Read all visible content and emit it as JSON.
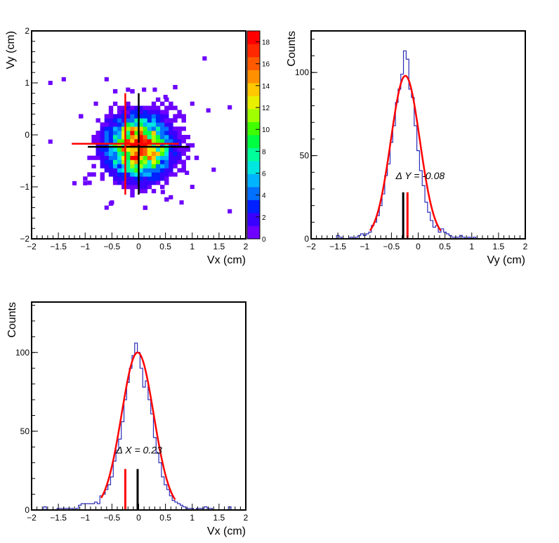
{
  "chart_data": [
    {
      "type": "heatmap",
      "title": "",
      "xlabel": "Vx (cm)",
      "ylabel": "Vy (cm)",
      "xlim": [
        -2,
        2
      ],
      "ylim": [
        -2,
        2
      ],
      "xticks": [
        "−2",
        "−1.5",
        "−1",
        "−0.5",
        "0",
        "0.5",
        "1",
        "1.5",
        "2"
      ],
      "yticks": [
        "−2",
        "−1",
        "0",
        "1",
        "2"
      ],
      "colorbar": {
        "min": 0,
        "max": 19,
        "ticks": [
          "0",
          "2",
          "4",
          "6",
          "8",
          "10",
          "12",
          "14",
          "16",
          "18"
        ],
        "colors": [
          "#6d00ff",
          "#3a00ff",
          "#0020ff",
          "#0070ff",
          "#00b4ff",
          "#00e8e0",
          "#00ff9a",
          "#00ff40",
          "#40ff00",
          "#a0ff00",
          "#e8f000",
          "#ffc800",
          "#ff9000",
          "#ff5a00",
          "#ff2800",
          "#ff0000"
        ]
      },
      "gauss_center": [
        0.0,
        -0.23
      ],
      "gauss_sigma": [
        0.33,
        0.33
      ],
      "peak_count": 19,
      "outliers": [
        [
          -1.65,
          1.0
        ],
        [
          -1.4,
          1.07
        ],
        [
          -0.6,
          1.07
        ],
        [
          1.23,
          1.47
        ],
        [
          -1.65,
          -0.13
        ],
        [
          1.7,
          0.53
        ],
        [
          1.7,
          -1.47
        ],
        [
          -1.2,
          -0.93
        ],
        [
          -1.0,
          -0.93
        ],
        [
          -0.6,
          -1.4
        ],
        [
          0.6,
          -1.2
        ],
        [
          0.8,
          -1.3
        ],
        [
          1.0,
          0.6
        ],
        [
          1.3,
          0.47
        ],
        [
          1.0,
          -1.0
        ],
        [
          0.3,
          0.87
        ],
        [
          0.5,
          0.73
        ],
        [
          0.1,
          0.87
        ],
        [
          -0.5,
          -1.3
        ],
        [
          0.45,
          -1.1
        ],
        [
          -0.2,
          0.87
        ],
        [
          0.6,
          0.27
        ],
        [
          0.9,
          -0.73
        ],
        [
          -0.8,
          0.6
        ],
        [
          1.4,
          -0.67
        ]
      ],
      "crosshair_black": {
        "x": 0.0,
        "y": -0.23,
        "x_extent": [
          -0.95,
          0.95
        ],
        "y_extent": [
          -1.15,
          0.8
        ]
      },
      "crosshair_red": {
        "x": -0.25,
        "y": -0.17,
        "x_extent": [
          -1.25,
          0.75
        ],
        "y_extent": [
          -1.15,
          0.8
        ]
      }
    },
    {
      "type": "line",
      "title": "",
      "xlabel": "Vy (cm)",
      "ylabel": "Counts",
      "xlim": [
        -2,
        2
      ],
      "ylim": [
        0,
        125
      ],
      "xticks": [
        "−2",
        "−1.5",
        "−1",
        "−0.5",
        "0",
        "0.5",
        "1",
        "1.5",
        "2"
      ],
      "yticks": [
        "0",
        "50",
        "100"
      ],
      "series": [
        {
          "values": [
            [
              -1.55,
              0
            ],
            [
              -1.5,
              2
            ],
            [
              -1.45,
              1
            ],
            [
              -1.4,
              0
            ],
            [
              -1.35,
              0
            ],
            [
              -1.3,
              0
            ],
            [
              -1.25,
              1
            ],
            [
              -1.2,
              0
            ],
            [
              -1.15,
              1
            ],
            [
              -1.1,
              2
            ],
            [
              -1.05,
              3
            ],
            [
              -1.0,
              2
            ],
            [
              -0.95,
              3
            ],
            [
              -0.9,
              4
            ],
            [
              -0.85,
              8
            ],
            [
              -0.8,
              10
            ],
            [
              -0.75,
              14
            ],
            [
              -0.7,
              20
            ],
            [
              -0.65,
              27
            ],
            [
              -0.6,
              38
            ],
            [
              -0.55,
              45
            ],
            [
              -0.5,
              58
            ],
            [
              -0.45,
              68
            ],
            [
              -0.4,
              82
            ],
            [
              -0.35,
              90
            ],
            [
              -0.3,
              99
            ],
            [
              -0.25,
              113
            ],
            [
              -0.2,
              108
            ],
            [
              -0.15,
              90
            ],
            [
              -0.1,
              85
            ],
            [
              -0.05,
              68
            ],
            [
              0.0,
              53
            ],
            [
              0.05,
              41
            ],
            [
              0.1,
              32
            ],
            [
              0.15,
              22
            ],
            [
              0.2,
              16
            ],
            [
              0.25,
              11
            ],
            [
              0.3,
              7
            ],
            [
              0.35,
              8
            ],
            [
              0.4,
              4
            ],
            [
              0.45,
              6
            ],
            [
              0.5,
              4
            ],
            [
              0.55,
              3
            ],
            [
              0.6,
              2
            ],
            [
              0.65,
              1
            ],
            [
              0.7,
              1
            ],
            [
              0.75,
              1
            ],
            [
              0.8,
              2
            ],
            [
              0.85,
              1
            ],
            [
              0.9,
              0
            ],
            [
              0.95,
              1
            ],
            [
              1.0,
              0
            ],
            [
              1.05,
              1
            ],
            [
              1.1,
              0
            ],
            [
              1.15,
              0
            ]
          ]
        }
      ],
      "fit": {
        "amplitude": 98,
        "mean": -0.24,
        "sigma": 0.27,
        "range": [
          -0.9,
          0.42
        ]
      },
      "annotation": "Δ Y = -0.08",
      "annotation_pos": [
        -0.42,
        36
      ],
      "marker_black": {
        "x": -0.28,
        "height": 28
      },
      "marker_red": {
        "x": -0.2,
        "height": 28
      }
    },
    {
      "type": "line",
      "title": "",
      "xlabel": "Vx (cm)",
      "ylabel": "Counts",
      "xlim": [
        -2,
        2
      ],
      "ylim": [
        0,
        132
      ],
      "xticks": [
        "−2",
        "−1.5",
        "−1",
        "−0.5",
        "0",
        "0.5",
        "1",
        "1.5",
        "2"
      ],
      "yticks": [
        "0",
        "50",
        "100"
      ],
      "series": [
        {
          "values": [
            [
              -1.75,
              2
            ],
            [
              -1.7,
              0
            ],
            [
              -1.65,
              0
            ],
            [
              -1.6,
              0
            ],
            [
              -1.55,
              0
            ],
            [
              -1.5,
              1
            ],
            [
              -1.45,
              1
            ],
            [
              -1.4,
              1
            ],
            [
              -1.35,
              1
            ],
            [
              -1.3,
              1
            ],
            [
              -1.25,
              1
            ],
            [
              -1.2,
              0
            ],
            [
              -1.15,
              1
            ],
            [
              -1.1,
              3
            ],
            [
              -1.05,
              4
            ],
            [
              -1.0,
              4
            ],
            [
              -0.95,
              4
            ],
            [
              -0.9,
              4
            ],
            [
              -0.85,
              4
            ],
            [
              -0.8,
              5
            ],
            [
              -0.75,
              4
            ],
            [
              -0.7,
              9
            ],
            [
              -0.65,
              10
            ],
            [
              -0.6,
              13
            ],
            [
              -0.55,
              16
            ],
            [
              -0.5,
              21
            ],
            [
              -0.45,
              31
            ],
            [
              -0.4,
              38
            ],
            [
              -0.35,
              45
            ],
            [
              -0.3,
              56
            ],
            [
              -0.25,
              70
            ],
            [
              -0.2,
              81
            ],
            [
              -0.15,
              90
            ],
            [
              -0.1,
              98
            ],
            [
              -0.05,
              106
            ],
            [
              0.0,
              100
            ],
            [
              0.05,
              90
            ],
            [
              0.1,
              78
            ],
            [
              0.15,
              82
            ],
            [
              0.2,
              70
            ],
            [
              0.25,
              61
            ],
            [
              0.3,
              46
            ],
            [
              0.35,
              36
            ],
            [
              0.4,
              30
            ],
            [
              0.45,
              21
            ],
            [
              0.5,
              16
            ],
            [
              0.55,
              13
            ],
            [
              0.6,
              9
            ],
            [
              0.65,
              6
            ],
            [
              0.7,
              5
            ],
            [
              0.75,
              4
            ],
            [
              0.8,
              3
            ],
            [
              0.85,
              2
            ],
            [
              0.9,
              1
            ],
            [
              0.95,
              1
            ],
            [
              1.0,
              1
            ],
            [
              1.05,
              0
            ],
            [
              1.1,
              1
            ],
            [
              1.15,
              1
            ],
            [
              1.2,
              1
            ],
            [
              1.25,
              2
            ],
            [
              1.3,
              1
            ],
            [
              1.35,
              1
            ],
            [
              1.4,
              0
            ],
            [
              1.45,
              0
            ],
            [
              1.5,
              0
            ],
            [
              1.55,
              0
            ],
            [
              1.6,
              0
            ],
            [
              1.65,
              0
            ],
            [
              1.7,
              2
            ],
            [
              1.75,
              0
            ],
            [
              1.8,
              0
            ]
          ]
        }
      ],
      "fit": {
        "amplitude": 100,
        "mean": -0.02,
        "sigma": 0.3,
        "range": [
          -0.7,
          0.68
        ]
      },
      "annotation": "Δ X = 0.23",
      "annotation_pos": [
        -0.42,
        36
      ],
      "marker_red": {
        "x": -0.25,
        "height": 26
      },
      "marker_black": {
        "x": -0.02,
        "height": 26
      }
    }
  ]
}
